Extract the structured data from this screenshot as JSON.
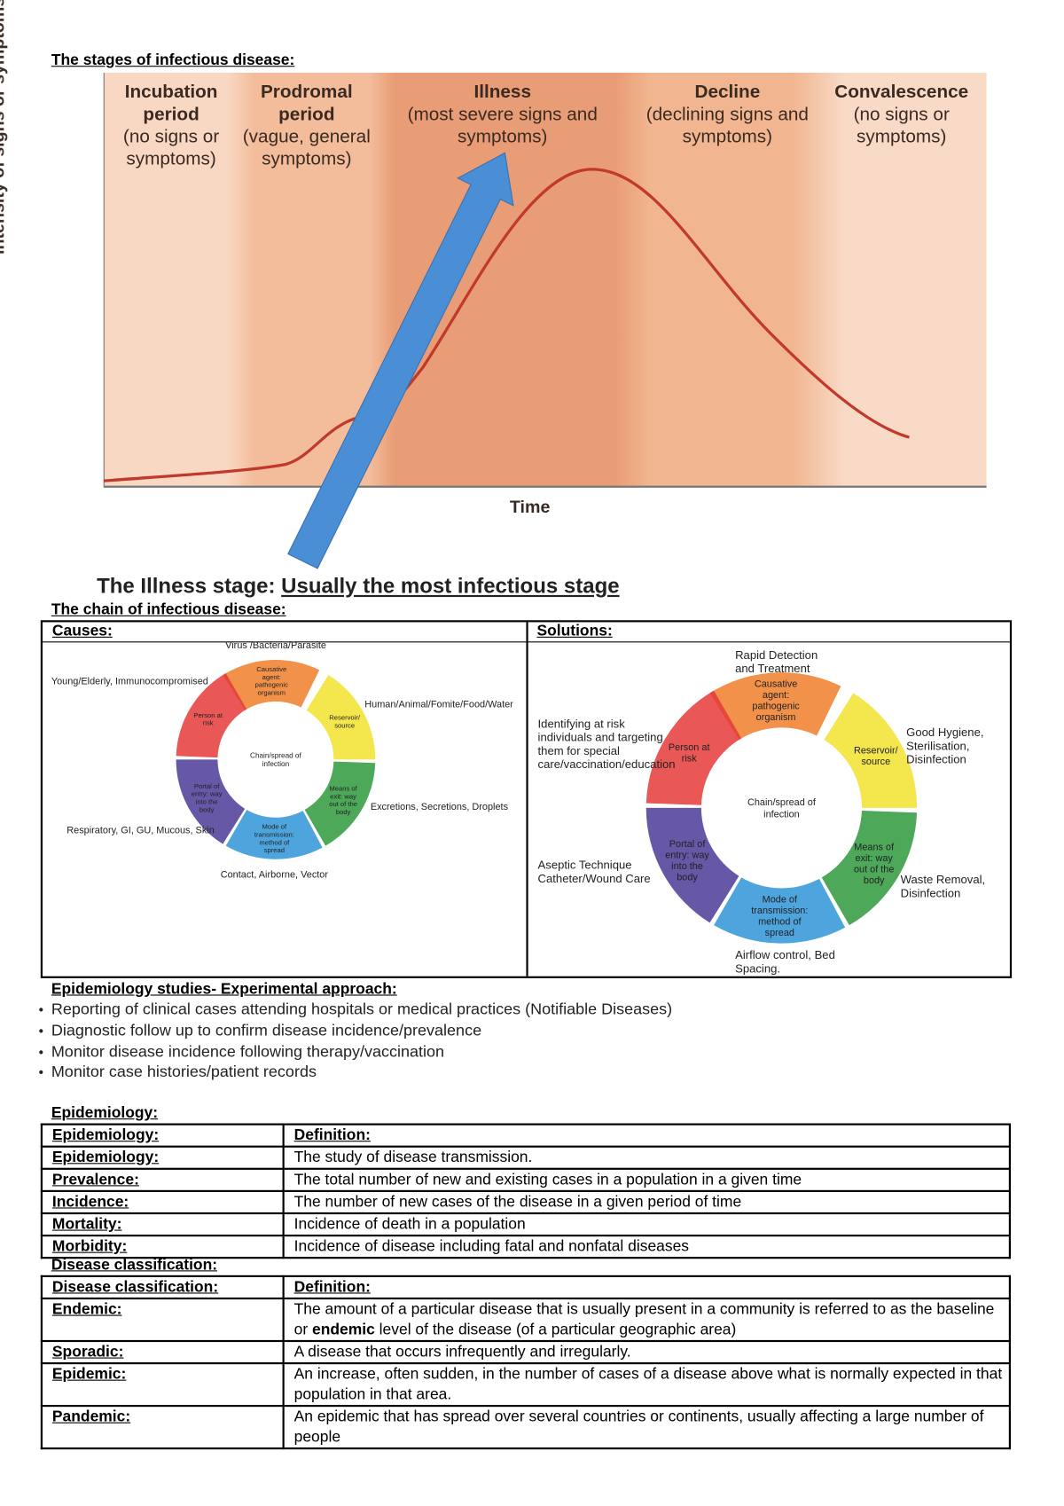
{
  "stages": {
    "heading": "The stages of infectious disease:",
    "y_axis_label": "Number of microorganisms or intensity of signs or symptoms",
    "x_axis_label": "Time",
    "bands": [
      {
        "title": "Incubation period",
        "subtitle": "(no signs or symptoms)",
        "color": "#f8d8c3"
      },
      {
        "title": "Prodromal period",
        "subtitle": "(vague, general symptoms)",
        "color": "#f3bd9c"
      },
      {
        "title": "Illness",
        "subtitle": "(most severe signs and symptoms)",
        "color": "#e99d76"
      },
      {
        "title": "Decline",
        "subtitle": "(declining signs and symptoms)",
        "color": "#f1b690"
      },
      {
        "title": "Convalescence",
        "subtitle": "(no signs or symptoms)",
        "color": "#f8dac6"
      }
    ],
    "curve_color": "#c0392b",
    "arrow_color": "#4a8fd6",
    "callout_prefix": "The Illness stage: ",
    "callout_emphasis": "Usually the most infectious stage"
  },
  "chain": {
    "heading": "The chain of infectious disease:",
    "causes_label": "Causes:",
    "solutions_label": "Solutions:",
    "center": "Chain/spread of infection",
    "segments": [
      {
        "label": "Causative agent: pathogenic organism",
        "color": "#f07f2a"
      },
      {
        "label": "Reservoir/ source",
        "color": "#f2e22e"
      },
      {
        "label": "Means of exit: way out of the body",
        "color": "#2e9a3c"
      },
      {
        "label": "Mode of transmission: method of spread",
        "color": "#2f95d8"
      },
      {
        "label": "Portal of entry: way into the body",
        "color": "#4b3a98"
      },
      {
        "label": "Person at risk",
        "color": "#e53a3a"
      }
    ],
    "causes": {
      "agent": "Virus /Bacteria/Parasite",
      "person": "Young/Elderly, Immunocompromised",
      "reservoir": "Human/Animal/Fomite/Food/Water",
      "exit": "Excretions, Secretions, Droplets",
      "entry": "Respiratory, GI, GU, Mucous, Skin",
      "transmission": "Contact, Airborne, Vector"
    },
    "solutions": {
      "agent": [
        "Rapid Detection",
        "and Treatment"
      ],
      "person": [
        "Identifying at risk",
        "individuals and targeting",
        "them for special",
        "care/vaccination/education"
      ],
      "reservoir": [
        "Good Hygiene,",
        "Sterilisation,",
        "Disinfection"
      ],
      "entry": [
        "Aseptic Technique",
        "Catheter/Wound Care"
      ],
      "exit": [
        "Waste Removal,",
        "Disinfection"
      ],
      "transmission": [
        "Airflow control, Bed",
        "Spacing."
      ]
    }
  },
  "studies": {
    "heading": "Epidemiology studies- Experimental approach:",
    "bullets": [
      "Reporting of clinical cases attending hospitals or medical practices (Notifiable Diseases)",
      "Diagnostic follow up to confirm disease incidence/prevalence",
      "Monitor disease incidence following therapy/vaccination",
      "Monitor case histories/patient records"
    ]
  },
  "epidemiology": {
    "heading": "Epidemiology:",
    "header": [
      "Epidemiology:",
      "Definition:"
    ],
    "rows": [
      [
        "Epidemiology:",
        "The study of disease transmission."
      ],
      [
        "Prevalence:",
        "The total number of new and existing cases in a population in a given time"
      ],
      [
        "Incidence:",
        "The number of new cases of the disease in a given period of time"
      ],
      [
        "Mortality:",
        "Incidence of death in a population"
      ],
      [
        "Morbidity:",
        "Incidence of disease including fatal and nonfatal diseases"
      ]
    ]
  },
  "classification": {
    "heading": "Disease classification:",
    "header": [
      "Disease classification:",
      "Definition:"
    ],
    "rows": [
      [
        "Endemic:",
        "The amount of a particular disease that is usually present in a community is referred to as the baseline or ",
        "endemic",
        " level of the disease (of a particular geographic area)"
      ],
      [
        "Sporadic:",
        "A disease that occurs infrequently and irregularly."
      ],
      [
        "Epidemic:",
        "An increase, often sudden, in the number of cases of a disease above what is normally expected in that population in that area."
      ],
      [
        "Pandemic:",
        "An epidemic that has spread over several countries or continents, usually affecting a large number of people"
      ]
    ]
  }
}
